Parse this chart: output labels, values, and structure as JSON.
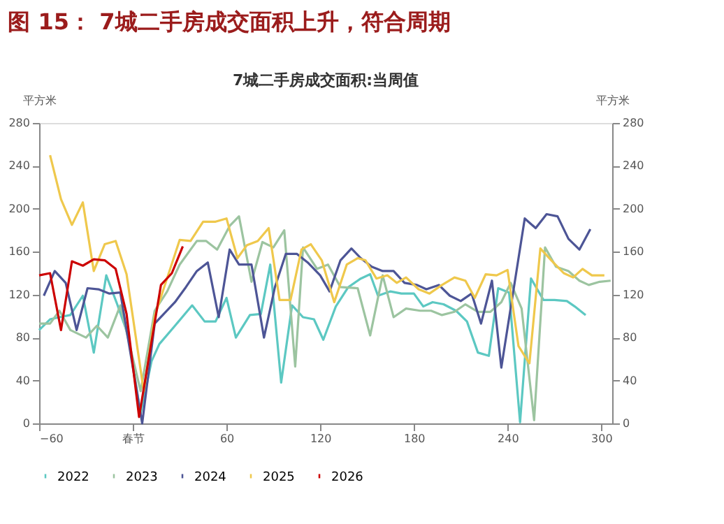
{
  "chart_data": {
    "type": "line",
    "title": "图 15：  7城二手房成交面积上升，符合周期",
    "subtitle": "7城二手房成交面积:当周值",
    "ylabel": "平方米",
    "y2label": "平方米",
    "xlim": [
      -60,
      307
    ],
    "xticks": [
      -60,
      {
        "value": 0,
        "label": "春节"
      },
      60,
      120,
      180,
      240,
      300
    ],
    "ylim": [
      0,
      280
    ],
    "yticks": [
      0,
      40,
      80,
      120,
      160,
      200,
      240,
      280
    ],
    "y2lim": [
      0,
      280
    ],
    "y2ticks": [
      0,
      40,
      80,
      120,
      160,
      200,
      240,
      280
    ],
    "grid": false,
    "legend": "bottom",
    "marker": "none",
    "line_style": "solid",
    "series": [
      {
        "name": "2022",
        "color": "#5cc8c2",
        "x": [
          -60,
          -53,
          -47,
          -40,
          -32,
          -25,
          -17,
          -10,
          -3,
          5,
          12,
          17,
          27,
          38,
          46,
          53,
          60,
          66,
          75,
          82,
          88,
          95,
          102,
          109,
          116,
          122,
          130,
          138,
          146,
          152,
          157,
          165,
          172,
          180,
          186,
          192,
          199,
          207,
          214,
          221,
          228,
          234,
          241,
          248,
          255,
          263,
          270,
          278,
          283,
          290
        ],
        "values": [
          87,
          97,
          99,
          101,
          119,
          66,
          138,
          111,
          82,
          9,
          58,
          74,
          91,
          110,
          95,
          95,
          117,
          80,
          101,
          102,
          148,
          38,
          110,
          99,
          97,
          78,
          109,
          127,
          135,
          139,
          119,
          123,
          121,
          121,
          109,
          113,
          111,
          105,
          95,
          66,
          63,
          126,
          122,
          1,
          135,
          115,
          115,
          114,
          109,
          101
        ]
      },
      {
        "name": "2023",
        "color": "#9cc4a0",
        "x": [
          -60,
          -53,
          -47,
          -40,
          -30,
          -23,
          -16,
          -8,
          5,
          14,
          22,
          30,
          41,
          47,
          54,
          62,
          68,
          76,
          83,
          90,
          97,
          104,
          109,
          118,
          125,
          133,
          144,
          152,
          160,
          167,
          175,
          184,
          191,
          198,
          206,
          213,
          221,
          229,
          236,
          242,
          249,
          257,
          264,
          271,
          279,
          286,
          292,
          299,
          306
        ],
        "values": [
          93,
          93,
          105,
          87,
          80,
          91,
          80,
          110,
          30,
          105,
          123,
          148,
          170,
          170,
          162,
          184,
          193,
          132,
          169,
          164,
          180,
          53,
          164,
          144,
          148,
          127,
          126,
          82,
          138,
          99,
          107,
          105,
          105,
          101,
          104,
          111,
          104,
          104,
          113,
          131,
          107,
          3,
          164,
          146,
          142,
          133,
          129,
          132,
          133
        ]
      },
      {
        "name": "2024",
        "color": "#4d5596",
        "x": [
          -57,
          -50,
          -43,
          -36,
          -29,
          -22,
          -15,
          -8,
          6,
          14,
          27,
          34,
          41,
          48,
          55,
          62,
          68,
          76,
          84,
          91,
          98,
          105,
          112,
          120,
          126,
          133,
          140,
          146,
          153,
          160,
          167,
          174,
          182,
          188,
          196,
          203,
          210,
          217,
          223,
          230,
          236,
          251,
          258,
          265,
          272,
          279,
          286,
          293
        ],
        "values": [
          119,
          142,
          131,
          87,
          126,
          125,
          121,
          122,
          0,
          93,
          113,
          127,
          142,
          150,
          99,
          162,
          148,
          148,
          80,
          127,
          158,
          158,
          150,
          138,
          123,
          152,
          163,
          154,
          146,
          142,
          142,
          131,
          129,
          125,
          129,
          119,
          114,
          121,
          93,
          133,
          52,
          191,
          182,
          195,
          193,
          172,
          162,
          181
        ]
      },
      {
        "name": "2025",
        "color": "#efc84c",
        "x": [
          -53,
          -46,
          -39,
          -32,
          -25,
          -18,
          -11,
          -4,
          7,
          14,
          30,
          37,
          45,
          53,
          60,
          67,
          73,
          80,
          87,
          94,
          101,
          108,
          114,
          121,
          129,
          137,
          144,
          149,
          156,
          163,
          169,
          175,
          183,
          190,
          198,
          206,
          213,
          219,
          226,
          233,
          240,
          247,
          254,
          261,
          268,
          276,
          282,
          288,
          294,
          302
        ],
        "values": [
          250,
          209,
          185,
          206,
          142,
          167,
          170,
          139,
          30,
          100,
          171,
          170,
          188,
          188,
          191,
          154,
          166,
          170,
          182,
          115,
          115,
          162,
          167,
          152,
          113,
          148,
          154,
          152,
          135,
          138,
          131,
          136,
          125,
          121,
          129,
          136,
          133,
          117,
          139,
          138,
          143,
          72,
          56,
          163,
          152,
          140,
          136,
          144,
          138,
          138
        ]
      },
      {
        "name": "2026",
        "color": "#cc0000",
        "x": [
          -60,
          -53,
          -46,
          -39,
          -32,
          -25,
          -18,
          -11,
          -4,
          4,
          18,
          25,
          32
        ],
        "values": [
          138,
          140,
          87,
          151,
          147,
          153,
          152,
          144,
          102,
          6,
          129,
          140,
          165
        ]
      }
    ]
  }
}
